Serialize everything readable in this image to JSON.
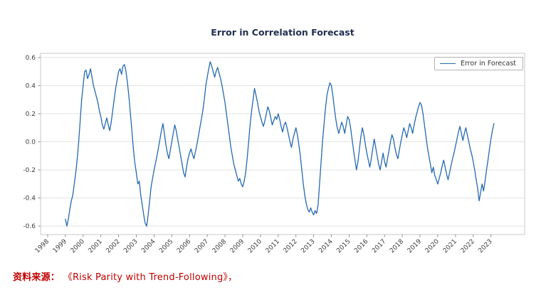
{
  "figure": {
    "title": "Error in Correlation Forecast",
    "legend": {
      "label": "Error in Forecast"
    },
    "source_note": {
      "prefix": "资料来源：",
      "text": "《Risk Parity with Trend-Following》，"
    }
  },
  "style": {
    "line_color": "#2469b0",
    "grid_color": "#e3e3e3",
    "spine_color": "#c9c9c9",
    "tick_color": "#777777",
    "tick_label_color": "#3c3c3c",
    "title_color": "#203050",
    "source_color": "#c00000"
  },
  "chart_data": {
    "type": "line",
    "title": "Error in Correlation Forecast",
    "xlabel": "",
    "ylabel": "",
    "grid": "horizontal",
    "legend_position": "upper right",
    "xlim": [
      1997.6,
      2024.9
    ],
    "ylim": [
      -0.66,
      0.63
    ],
    "y_ticks": [
      0.6,
      0.4,
      0.2,
      0.0,
      -0.2,
      -0.4,
      -0.6
    ],
    "x_tick_labels": [
      "1998",
      "1999",
      "2000",
      "2001",
      "2002",
      "2003",
      "2004",
      "2005",
      "2006",
      "2007",
      "2008",
      "2009",
      "2010",
      "2011",
      "2012",
      "2013",
      "2014",
      "2015",
      "2016",
      "2017",
      "2018",
      "2019",
      "2020",
      "2021",
      "2022",
      "2023"
    ],
    "series": [
      {
        "name": "Error in Forecast",
        "x_start_year": 1999,
        "frequency": "monthly",
        "values": [
          -0.55,
          -0.6,
          -0.55,
          -0.48,
          -0.42,
          -0.38,
          -0.3,
          -0.22,
          -0.12,
          0.0,
          0.15,
          0.3,
          0.4,
          0.5,
          0.51,
          0.45,
          0.48,
          0.52,
          0.46,
          0.4,
          0.36,
          0.32,
          0.28,
          0.22,
          0.18,
          0.12,
          0.09,
          0.13,
          0.17,
          0.12,
          0.08,
          0.14,
          0.22,
          0.3,
          0.38,
          0.44,
          0.5,
          0.52,
          0.48,
          0.54,
          0.55,
          0.5,
          0.42,
          0.32,
          0.2,
          0.08,
          -0.05,
          -0.15,
          -0.22,
          -0.3,
          -0.28,
          -0.38,
          -0.45,
          -0.52,
          -0.58,
          -0.6,
          -0.52,
          -0.42,
          -0.32,
          -0.26,
          -0.2,
          -0.15,
          -0.1,
          -0.04,
          0.02,
          0.08,
          0.13,
          0.06,
          -0.02,
          -0.08,
          -0.12,
          -0.06,
          0.0,
          0.06,
          0.12,
          0.08,
          0.02,
          -0.04,
          -0.1,
          -0.16,
          -0.22,
          -0.25,
          -0.18,
          -0.12,
          -0.08,
          -0.05,
          -0.09,
          -0.12,
          -0.07,
          -0.02,
          0.04,
          0.1,
          0.16,
          0.22,
          0.3,
          0.4,
          0.46,
          0.52,
          0.57,
          0.54,
          0.5,
          0.46,
          0.5,
          0.53,
          0.49,
          0.45,
          0.4,
          0.34,
          0.28,
          0.2,
          0.12,
          0.04,
          -0.04,
          -0.1,
          -0.16,
          -0.2,
          -0.24,
          -0.28,
          -0.26,
          -0.3,
          -0.32,
          -0.28,
          -0.22,
          -0.12,
          0.0,
          0.12,
          0.22,
          0.3,
          0.38,
          0.33,
          0.28,
          0.22,
          0.18,
          0.14,
          0.11,
          0.15,
          0.2,
          0.25,
          0.22,
          0.17,
          0.12,
          0.15,
          0.18,
          0.16,
          0.2,
          0.16,
          0.11,
          0.07,
          0.12,
          0.14,
          0.1,
          0.05,
          0.0,
          -0.04,
          0.02,
          0.06,
          0.1,
          0.05,
          -0.02,
          -0.1,
          -0.2,
          -0.3,
          -0.38,
          -0.44,
          -0.48,
          -0.5,
          -0.47,
          -0.5,
          -0.52,
          -0.49,
          -0.51,
          -0.45,
          -0.3,
          -0.15,
          0.0,
          0.12,
          0.24,
          0.33,
          0.38,
          0.42,
          0.4,
          0.33,
          0.24,
          0.16,
          0.1,
          0.06,
          0.1,
          0.14,
          0.11,
          0.06,
          0.12,
          0.18,
          0.16,
          0.1,
          0.02,
          -0.06,
          -0.13,
          -0.2,
          -0.14,
          -0.05,
          0.04,
          0.1,
          0.05,
          -0.02,
          -0.08,
          -0.13,
          -0.18,
          -0.12,
          -0.05,
          0.02,
          -0.04,
          -0.1,
          -0.16,
          -0.2,
          -0.14,
          -0.08,
          -0.14,
          -0.18,
          -0.12,
          -0.06,
          0.0,
          0.05,
          0.02,
          -0.04,
          -0.09,
          -0.12,
          -0.06,
          0.0,
          0.05,
          0.1,
          0.07,
          0.03,
          0.08,
          0.13,
          0.1,
          0.06,
          0.12,
          0.17,
          0.21,
          0.25,
          0.28,
          0.26,
          0.2,
          0.12,
          0.04,
          -0.04,
          -0.1,
          -0.16,
          -0.22,
          -0.18,
          -0.24,
          -0.27,
          -0.3,
          -0.26,
          -0.22,
          -0.17,
          -0.13,
          -0.18,
          -0.23,
          -0.27,
          -0.22,
          -0.17,
          -0.12,
          -0.08,
          -0.03,
          0.02,
          0.07,
          0.11,
          0.06,
          0.01,
          0.06,
          0.1,
          0.05,
          0.0,
          -0.05,
          -0.09,
          -0.14,
          -0.2,
          -0.27,
          -0.33,
          -0.42,
          -0.36,
          -0.3,
          -0.35,
          -0.28,
          -0.2,
          -0.13,
          -0.05,
          0.02,
          0.08,
          0.13
        ]
      }
    ]
  }
}
